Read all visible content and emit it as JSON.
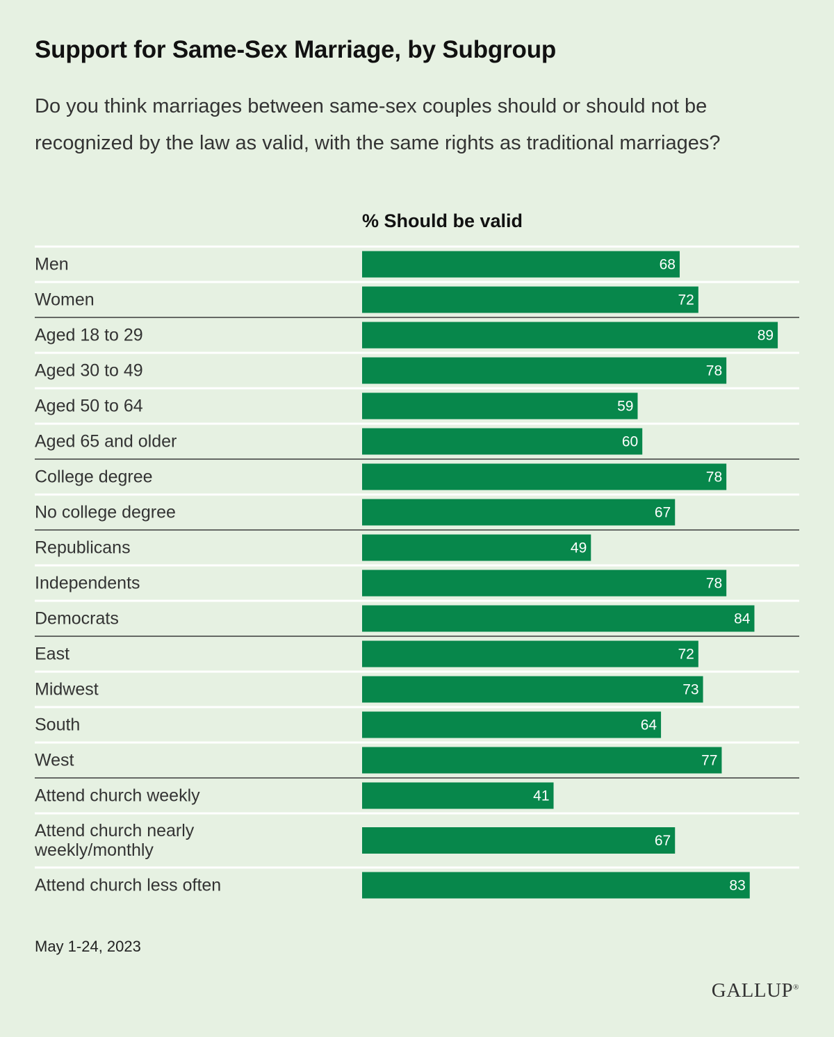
{
  "chart_data": {
    "type": "bar",
    "orientation": "horizontal",
    "title": "Support for Same-Sex Marriage, by Subgroup",
    "subtitle": "Do you think marriages between same-sex couples should or should not be recognized by the law as valid, with the same rights as traditional marriages?",
    "series_name": "% Should be valid",
    "xlim": [
      0,
      100
    ],
    "groups": [
      {
        "rows": [
          {
            "label": "Men",
            "value": 68
          },
          {
            "label": "Women",
            "value": 72
          }
        ]
      },
      {
        "rows": [
          {
            "label": "Aged 18 to 29",
            "value": 89
          },
          {
            "label": "Aged 30 to 49",
            "value": 78
          },
          {
            "label": "Aged 50 to 64",
            "value": 59
          },
          {
            "label": "Aged 65 and older",
            "value": 60
          }
        ]
      },
      {
        "rows": [
          {
            "label": "College degree",
            "value": 78
          },
          {
            "label": "No college degree",
            "value": 67
          }
        ]
      },
      {
        "rows": [
          {
            "label": "Republicans",
            "value": 49
          },
          {
            "label": "Independents",
            "value": 78
          },
          {
            "label": "Democrats",
            "value": 84
          }
        ]
      },
      {
        "rows": [
          {
            "label": "East",
            "value": 72
          },
          {
            "label": "Midwest",
            "value": 73
          },
          {
            "label": "South",
            "value": 64
          },
          {
            "label": "West",
            "value": 77
          }
        ]
      },
      {
        "rows": [
          {
            "label": "Attend church weekly",
            "value": 41
          },
          {
            "label": "Attend church nearly weekly/monthly",
            "lines": [
              "Attend church nearly",
              "weekly/monthly"
            ],
            "value": 67
          },
          {
            "label": "Attend church less often",
            "value": 83
          }
        ]
      }
    ],
    "date_note": "May 1-24, 2023",
    "source": "GALLUP",
    "colors": {
      "bar": "#07874b",
      "background": "#e6f1e2",
      "separator": "#ffffff",
      "group_divider": "#3a3a3a"
    }
  }
}
